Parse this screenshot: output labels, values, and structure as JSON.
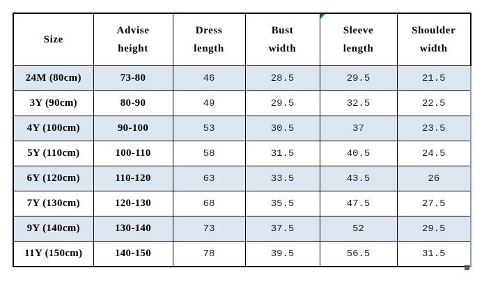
{
  "colors": {
    "background": "#ffffff",
    "grid_border": "#000000",
    "row_alt_fill": "#dce6f1",
    "right_edge_line": "#7f9cba",
    "comment_marker": "#217a36",
    "selection_handle": "#44639c",
    "text_primary": "#000000",
    "text_numbers": "#1f1f1f"
  },
  "size_chart": {
    "columns": [
      {
        "line1": "Size",
        "line2": ""
      },
      {
        "line1": "Advise",
        "line2": "height"
      },
      {
        "line1": "Dress",
        "line2": "length"
      },
      {
        "line1": "Bust",
        "line2": "width"
      },
      {
        "line1": "Sleeve",
        "line2": "length"
      },
      {
        "line1": "Shoulder",
        "line2": "width"
      }
    ],
    "rows": [
      {
        "cells": [
          "24M (80cm)",
          "73-80",
          "46",
          "28.5",
          "29.5",
          "21.5"
        ]
      },
      {
        "cells": [
          "3Y (90cm)",
          "80-90",
          "49",
          "29.5",
          "32.5",
          "22.5"
        ]
      },
      {
        "cells": [
          "4Y (100cm)",
          "90-100",
          "53",
          "30.5",
          "37",
          "23.5"
        ]
      },
      {
        "cells": [
          "5Y (110cm)",
          "100-110",
          "58",
          "31.5",
          "40.5",
          "24.5"
        ]
      },
      {
        "cells": [
          "6Y (120cm)",
          "110-120",
          "63",
          "33.5",
          "43.5",
          "26"
        ]
      },
      {
        "cells": [
          "7Y (130cm)",
          "120-130",
          "68",
          "35.5",
          "47.5",
          "27.5"
        ]
      },
      {
        "cells": [
          "9Y (140cm)",
          "130-140",
          "73",
          "37.5",
          "52",
          "29.5"
        ]
      },
      {
        "cells": [
          "11Y (150cm)",
          "140-150",
          "78",
          "39.5",
          "56.5",
          "31.5"
        ]
      }
    ]
  }
}
